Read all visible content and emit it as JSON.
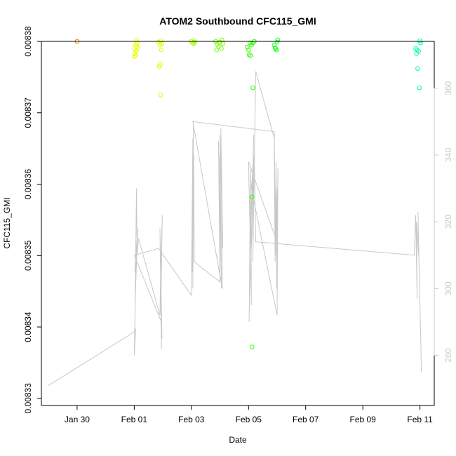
{
  "chart_data": {
    "type": "scatter",
    "title": "ATOM2 Southbound CFC115_GMI",
    "xlabel": "Date",
    "ylabel": "CFC115_GMI",
    "x_ticks": [
      "Jan 30",
      "Feb 01",
      "Feb 03",
      "Feb 05",
      "Feb 07",
      "Feb 09",
      "Feb 11"
    ],
    "x_tick_days": [
      -2,
      0,
      2,
      4,
      6,
      8,
      10
    ],
    "xlim_days": [
      -3.25,
      10.5
    ],
    "ylim": [
      0.008329,
      0.00838
    ],
    "y_ticks": [
      "0.00833",
      "0.00834",
      "0.00835",
      "0.00836",
      "0.00837",
      "0.00838"
    ],
    "y_tick_values": [
      0.00833,
      0.00834,
      0.00835,
      0.00836,
      0.00837,
      0.00838
    ],
    "y2lim": [
      265,
      374
    ],
    "y2_ticks": [
      "280",
      "300",
      "320",
      "340",
      "360"
    ],
    "y2_tick_values": [
      280,
      300,
      320,
      340,
      360
    ],
    "series": [
      {
        "kind": "points",
        "points": [
          {
            "x": -2.0,
            "y": 0.00838,
            "color": "#ff8000"
          },
          {
            "x": 0.0,
            "y": 0.008379,
            "color": "#e6ff00"
          },
          {
            "x": 0.05,
            "y": 0.0083795,
            "color": "#e6ff00"
          },
          {
            "x": 0.1,
            "y": 0.0083798,
            "color": "#e6ff00"
          },
          {
            "x": 0.12,
            "y": 0.008379,
            "color": "#e6ff00"
          },
          {
            "x": 0.08,
            "y": 0.0083802,
            "color": "#e6ff00"
          },
          {
            "x": 0.02,
            "y": 0.0083783,
            "color": "#e6ff00"
          },
          {
            "x": 0.06,
            "y": 0.0083787,
            "color": "#e6ff00"
          },
          {
            "x": 0.0,
            "y": 0.0083779,
            "color": "#e6ff00"
          },
          {
            "x": 0.04,
            "y": 0.008378,
            "color": "#e6ff00"
          },
          {
            "x": 0.09,
            "y": 0.0083793,
            "color": "#e6ff00"
          },
          {
            "x": 0.85,
            "y": 0.0083799,
            "color": "#d6ff00"
          },
          {
            "x": 0.9,
            "y": 0.0083795,
            "color": "#d6ff00"
          },
          {
            "x": 0.93,
            "y": 0.0083801,
            "color": "#d6ff00"
          },
          {
            "x": 0.95,
            "y": 0.0083788,
            "color": "#d6ff00"
          },
          {
            "x": 0.88,
            "y": 0.0083765,
            "color": "#d6ff00"
          },
          {
            "x": 0.91,
            "y": 0.0083768,
            "color": "#d6ff00"
          },
          {
            "x": 0.93,
            "y": 0.0083725,
            "color": "#d6ff00"
          },
          {
            "x": 0.97,
            "y": 0.0083797,
            "color": "#d6ff00"
          },
          {
            "x": 2.0,
            "y": 0.00838,
            "color": "#a6ff00"
          },
          {
            "x": 2.05,
            "y": 0.0083798,
            "color": "#a6ff00"
          },
          {
            "x": 2.1,
            "y": 0.0083801,
            "color": "#a6ff00"
          },
          {
            "x": 2.12,
            "y": 0.0083799,
            "color": "#a6ff00"
          },
          {
            "x": 2.08,
            "y": 0.0083797,
            "color": "#a6ff00"
          },
          {
            "x": 2.85,
            "y": 0.00838,
            "color": "#7cff00"
          },
          {
            "x": 2.9,
            "y": 0.0083796,
            "color": "#7cff00"
          },
          {
            "x": 2.95,
            "y": 0.0083793,
            "color": "#7cff00"
          },
          {
            "x": 3.0,
            "y": 0.0083799,
            "color": "#7cff00"
          },
          {
            "x": 3.05,
            "y": 0.008379,
            "color": "#7cff00"
          },
          {
            "x": 3.1,
            "y": 0.0083797,
            "color": "#7cff00"
          },
          {
            "x": 2.88,
            "y": 0.0083788,
            "color": "#7cff00"
          },
          {
            "x": 3.07,
            "y": 0.0083802,
            "color": "#7cff00"
          },
          {
            "x": 3.95,
            "y": 0.0083792,
            "color": "#33ff00"
          },
          {
            "x": 4.0,
            "y": 0.0083788,
            "color": "#33ff00"
          },
          {
            "x": 4.05,
            "y": 0.0083798,
            "color": "#33ff00"
          },
          {
            "x": 4.1,
            "y": 0.0083795,
            "color": "#33ff00"
          },
          {
            "x": 4.02,
            "y": 0.0083781,
            "color": "#33ff00"
          },
          {
            "x": 4.07,
            "y": 0.008378,
            "color": "#33ff00"
          },
          {
            "x": 4.15,
            "y": 0.0083798,
            "color": "#33ff00"
          },
          {
            "x": 4.2,
            "y": 0.00838,
            "color": "#33ff00"
          },
          {
            "x": 4.12,
            "y": 0.0083372,
            "color": "#33ff00"
          },
          {
            "x": 4.15,
            "y": 0.0083735,
            "color": "#33ff00"
          },
          {
            "x": 4.12,
            "y": 0.0083582,
            "color": "#33ff00"
          },
          {
            "x": 4.9,
            "y": 0.0083795,
            "color": "#1aff20"
          },
          {
            "x": 4.95,
            "y": 0.008379,
            "color": "#1aff20"
          },
          {
            "x": 5.0,
            "y": 0.0083799,
            "color": "#1aff20"
          },
          {
            "x": 5.02,
            "y": 0.0083802,
            "color": "#1aff20"
          },
          {
            "x": 4.97,
            "y": 0.0083788,
            "color": "#1aff20"
          },
          {
            "x": 4.93,
            "y": 0.0083791,
            "color": "#1aff20"
          },
          {
            "x": 9.85,
            "y": 0.008379,
            "color": "#00ffa6"
          },
          {
            "x": 9.9,
            "y": 0.0083788,
            "color": "#00ffa6"
          },
          {
            "x": 9.95,
            "y": 0.0083786,
            "color": "#00ffa6"
          },
          {
            "x": 10.0,
            "y": 0.0083801,
            "color": "#00ffa6"
          },
          {
            "x": 9.88,
            "y": 0.0083783,
            "color": "#00ffa6"
          },
          {
            "x": 9.92,
            "y": 0.0083762,
            "color": "#00ffa6"
          },
          {
            "x": 9.98,
            "y": 0.0083735,
            "color": "#00ffa6"
          },
          {
            "x": 10.02,
            "y": 0.0083798,
            "color": "#00ffa6"
          }
        ]
      },
      {
        "kind": "line",
        "axis": "right",
        "color": "#c8c8c8",
        "x": [
          -3.0,
          0.0,
          0.05,
          0.0,
          0.07,
          0.02,
          0.12,
          0.03,
          0.08,
          0.1,
          0.15,
          0.9,
          0.93,
          0.95,
          0.9,
          0.97,
          0.92,
          0.98,
          0.93,
          0.95,
          0.0,
          0.85,
          2.0,
          2.05,
          2.03,
          2.07,
          2.05,
          2.08,
          2.1,
          3.0,
          2.95,
          3.0,
          2.97,
          3.05,
          3.0,
          3.1,
          3.03,
          3.08,
          2.05,
          4.9,
          4.95,
          4.0,
          4.05,
          4.02,
          4.08,
          4.1,
          4.05,
          4.15,
          4.12,
          4.18,
          4.1,
          4.2,
          4.15,
          4.25,
          4.9,
          4.93,
          4.97,
          4.95,
          5.0,
          4.98,
          5.03,
          5.0,
          4.1,
          4.2,
          4.25,
          9.8,
          9.85,
          9.9,
          9.88,
          9.95,
          9.93,
          10.0,
          10.02,
          10.05
        ],
        "y": [
          271,
          287,
          288,
          280,
          312,
          305,
          318,
          296,
          330,
          310,
          315,
          292,
          308,
          282,
          318,
          285,
          300,
          322,
          293,
          290,
          310,
          312,
          298,
          345,
          305,
          350,
          300,
          340,
          308,
          302,
          344,
          305,
          340,
          300,
          346,
          312,
          348,
          300,
          350,
          347,
          315,
          338,
          318,
          290,
          336,
          295,
          310,
          337,
          315,
          346,
          312,
          340,
          308,
          365,
          345,
          308,
          338,
          310,
          330,
          300,
          336,
          292,
          330,
          340,
          314,
          310,
          322,
          297,
          320,
          310,
          323,
          295,
          287,
          275
        ]
      }
    ]
  }
}
